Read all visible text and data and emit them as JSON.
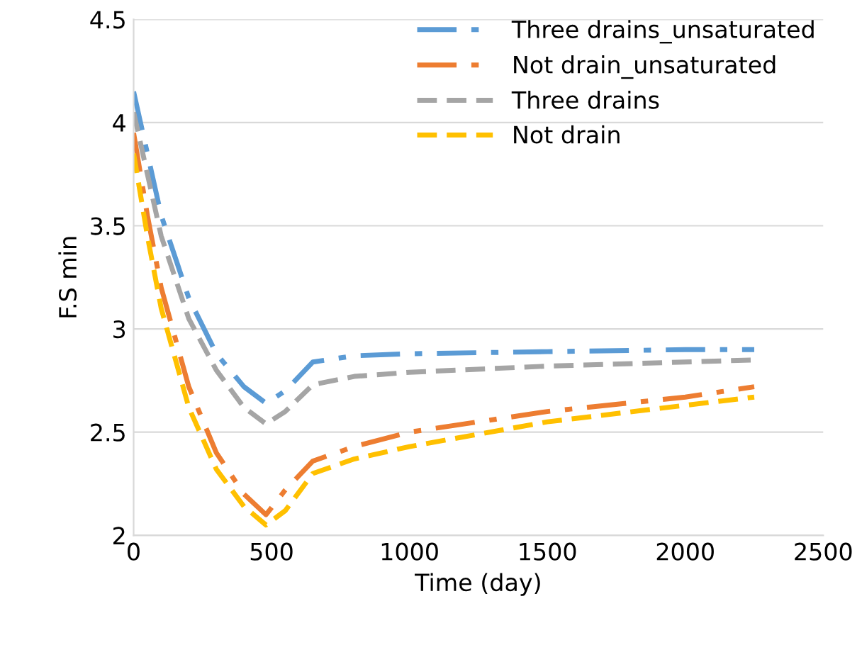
{
  "chart_data": {
    "type": "line",
    "xlabel": "Time (day)",
    "ylabel": "F.S min",
    "xlim": [
      0,
      2500
    ],
    "xticks": [
      0,
      500,
      1000,
      1500,
      2000,
      2500
    ],
    "ylim": [
      2,
      4.5
    ],
    "yticks": [
      2,
      2.5,
      3,
      3.5,
      4,
      4.5
    ],
    "grid": "y",
    "legend": "top right",
    "marker": "none",
    "series": [
      {
        "name": "Three drains_unsaturated",
        "color": "#5b9bd5",
        "line_style": "dashdot",
        "x": [
          0,
          50,
          100,
          200,
          300,
          400,
          480,
          550,
          650,
          800,
          1000,
          1500,
          2000,
          2250
        ],
        "values": [
          4.15,
          3.85,
          3.55,
          3.15,
          2.88,
          2.72,
          2.64,
          2.7,
          2.84,
          2.87,
          2.88,
          2.89,
          2.9,
          2.9
        ]
      },
      {
        "name": "Not drain_unsaturated",
        "color": "#ed7d31",
        "line_style": "dashdot",
        "x": [
          0,
          50,
          100,
          200,
          300,
          400,
          480,
          550,
          650,
          800,
          1000,
          1500,
          2000,
          2250
        ],
        "values": [
          3.95,
          3.55,
          3.2,
          2.72,
          2.4,
          2.2,
          2.1,
          2.22,
          2.36,
          2.43,
          2.5,
          2.6,
          2.67,
          2.72
        ]
      },
      {
        "name": "Three drains",
        "color": "#a5a5a5",
        "line_style": "dashed",
        "x": [
          0,
          50,
          100,
          200,
          300,
          400,
          480,
          550,
          650,
          800,
          1000,
          1500,
          2000,
          2250
        ],
        "values": [
          4.05,
          3.75,
          3.45,
          3.05,
          2.8,
          2.62,
          2.54,
          2.6,
          2.73,
          2.77,
          2.79,
          2.82,
          2.84,
          2.85
        ]
      },
      {
        "name": "Not drain",
        "color": "#ffc000",
        "line_style": "dashed",
        "x": [
          0,
          50,
          100,
          200,
          300,
          400,
          480,
          550,
          650,
          800,
          1000,
          1500,
          2000,
          2250
        ],
        "values": [
          3.85,
          3.45,
          3.1,
          2.62,
          2.32,
          2.14,
          2.05,
          2.12,
          2.3,
          2.37,
          2.43,
          2.55,
          2.63,
          2.67
        ]
      }
    ]
  }
}
